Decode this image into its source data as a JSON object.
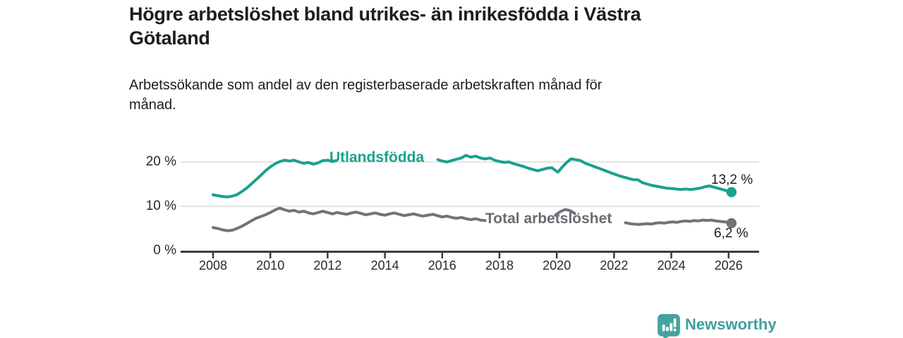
{
  "header": {
    "title_lines": [
      "Högre arbetslöshet bland utrikes- än inrikesfödda i Västra",
      "Götaland"
    ],
    "subtitle_lines": [
      "Arbetssökande som andel av den registerbaserade arbetskraften månad för",
      "månad."
    ]
  },
  "chart_data": {
    "type": "line",
    "title": "Högre arbetslöshet bland utrikes- än inrikesfödda i Västra Götaland",
    "subtitle": "Arbetssökande som andel av den registerbaserade arbetskraften månad för månad.",
    "grid": "horizontal",
    "x_axis": {
      "ticks": [
        2008,
        2010,
        2012,
        2014,
        2016,
        2018,
        2020,
        2022,
        2024,
        2026
      ],
      "range": [
        2006.9,
        2027.1
      ]
    },
    "y_axis": {
      "unit": "%",
      "range": [
        0,
        22
      ],
      "ticks": [
        {
          "value": 0,
          "label": "0 %"
        },
        {
          "value": 10,
          "label": "10 %"
        },
        {
          "value": 20,
          "label": "20 %"
        }
      ]
    },
    "series": [
      {
        "name": "Utlandsfödda",
        "inline_label": "Utlandsfödda",
        "color": "#1aa18f",
        "end_label": "13,2 %",
        "end_value": 13.2,
        "segments": [
          [
            [
              2008.0,
              12.6
            ],
            [
              2008.17,
              12.4
            ],
            [
              2008.33,
              12.2
            ],
            [
              2008.5,
              12.1
            ],
            [
              2008.67,
              12.3
            ],
            [
              2008.83,
              12.6
            ],
            [
              2009.0,
              13.3
            ],
            [
              2009.17,
              14.1
            ],
            [
              2009.33,
              15.0
            ],
            [
              2009.5,
              16.0
            ],
            [
              2009.67,
              17.0
            ],
            [
              2009.83,
              18.0
            ],
            [
              2010.0,
              18.9
            ],
            [
              2010.17,
              19.6
            ],
            [
              2010.33,
              20.1
            ],
            [
              2010.5,
              20.4
            ],
            [
              2010.67,
              20.2
            ],
            [
              2010.83,
              20.4
            ],
            [
              2011.0,
              20.0
            ],
            [
              2011.17,
              19.7
            ],
            [
              2011.33,
              19.9
            ],
            [
              2011.5,
              19.5
            ],
            [
              2011.67,
              19.8
            ],
            [
              2011.83,
              20.3
            ],
            [
              2012.0,
              20.4
            ],
            [
              2012.17,
              20.1
            ],
            [
              2012.3,
              20.3
            ]
          ],
          [
            [
              2015.85,
              20.5
            ],
            [
              2016.0,
              20.2
            ],
            [
              2016.17,
              20.0
            ],
            [
              2016.33,
              20.3
            ],
            [
              2016.5,
              20.6
            ],
            [
              2016.67,
              20.9
            ],
            [
              2016.83,
              21.5
            ],
            [
              2017.0,
              21.1
            ],
            [
              2017.17,
              21.3
            ],
            [
              2017.33,
              20.9
            ],
            [
              2017.5,
              20.7
            ],
            [
              2017.67,
              20.9
            ],
            [
              2017.83,
              20.4
            ],
            [
              2018.0,
              20.1
            ],
            [
              2018.17,
              19.9
            ],
            [
              2018.33,
              20.0
            ],
            [
              2018.5,
              19.6
            ],
            [
              2018.67,
              19.3
            ],
            [
              2018.83,
              19.0
            ],
            [
              2019.0,
              18.6
            ],
            [
              2019.17,
              18.3
            ],
            [
              2019.33,
              18.0
            ],
            [
              2019.5,
              18.3
            ],
            [
              2019.67,
              18.6
            ],
            [
              2019.83,
              18.7
            ],
            [
              2019.95,
              18.1
            ],
            [
              2020.04,
              17.7
            ],
            [
              2020.2,
              18.9
            ],
            [
              2020.35,
              19.9
            ],
            [
              2020.5,
              20.7
            ],
            [
              2020.67,
              20.5
            ],
            [
              2020.83,
              20.3
            ],
            [
              2021.0,
              19.7
            ],
            [
              2021.17,
              19.3
            ],
            [
              2021.33,
              18.9
            ],
            [
              2021.5,
              18.5
            ],
            [
              2021.67,
              18.1
            ],
            [
              2021.83,
              17.7
            ],
            [
              2022.0,
              17.3
            ],
            [
              2022.17,
              16.9
            ],
            [
              2022.33,
              16.6
            ],
            [
              2022.5,
              16.3
            ],
            [
              2022.67,
              16.0
            ],
            [
              2022.83,
              16.0
            ],
            [
              2023.0,
              15.3
            ],
            [
              2023.17,
              15.0
            ],
            [
              2023.33,
              14.7
            ],
            [
              2023.5,
              14.5
            ],
            [
              2023.67,
              14.3
            ],
            [
              2023.83,
              14.1
            ],
            [
              2024.0,
              14.0
            ],
            [
              2024.17,
              13.9
            ],
            [
              2024.33,
              13.8
            ],
            [
              2024.5,
              13.9
            ],
            [
              2024.67,
              13.8
            ],
            [
              2024.83,
              13.9
            ],
            [
              2025.0,
              14.1
            ],
            [
              2025.17,
              14.4
            ],
            [
              2025.33,
              14.6
            ],
            [
              2025.5,
              14.3
            ],
            [
              2025.67,
              14.0
            ],
            [
              2025.83,
              13.7
            ],
            [
              2026.1,
              13.2
            ]
          ]
        ]
      },
      {
        "name": "Total arbetslöshet",
        "inline_label": "Total arbetslöshet",
        "color": "#73727a",
        "end_label": "6,2 %",
        "end_value": 6.2,
        "segments": [
          [
            [
              2008.0,
              5.2
            ],
            [
              2008.17,
              5.0
            ],
            [
              2008.33,
              4.7
            ],
            [
              2008.5,
              4.5
            ],
            [
              2008.67,
              4.6
            ],
            [
              2008.83,
              5.0
            ],
            [
              2009.0,
              5.5
            ],
            [
              2009.17,
              6.1
            ],
            [
              2009.33,
              6.7
            ],
            [
              2009.5,
              7.3
            ],
            [
              2009.67,
              7.7
            ],
            [
              2009.83,
              8.1
            ],
            [
              2010.0,
              8.6
            ],
            [
              2010.17,
              9.2
            ],
            [
              2010.33,
              9.6
            ],
            [
              2010.5,
              9.2
            ],
            [
              2010.67,
              8.9
            ],
            [
              2010.83,
              9.1
            ],
            [
              2011.0,
              8.7
            ],
            [
              2011.17,
              8.9
            ],
            [
              2011.33,
              8.5
            ],
            [
              2011.5,
              8.3
            ],
            [
              2011.67,
              8.6
            ],
            [
              2011.83,
              8.9
            ],
            [
              2012.0,
              8.6
            ],
            [
              2012.17,
              8.3
            ],
            [
              2012.33,
              8.6
            ],
            [
              2012.5,
              8.4
            ],
            [
              2012.67,
              8.2
            ],
            [
              2012.83,
              8.5
            ],
            [
              2013.0,
              8.7
            ],
            [
              2013.17,
              8.4
            ],
            [
              2013.33,
              8.1
            ],
            [
              2013.5,
              8.3
            ],
            [
              2013.67,
              8.5
            ],
            [
              2013.83,
              8.2
            ],
            [
              2014.0,
              8.0
            ],
            [
              2014.17,
              8.3
            ],
            [
              2014.33,
              8.5
            ],
            [
              2014.5,
              8.2
            ],
            [
              2014.67,
              7.9
            ],
            [
              2014.83,
              8.1
            ],
            [
              2015.0,
              8.3
            ],
            [
              2015.17,
              8.0
            ],
            [
              2015.33,
              7.8
            ],
            [
              2015.5,
              8.0
            ],
            [
              2015.67,
              8.2
            ],
            [
              2015.83,
              7.9
            ],
            [
              2016.0,
              7.6
            ],
            [
              2016.17,
              7.8
            ],
            [
              2016.33,
              7.5
            ],
            [
              2016.5,
              7.3
            ],
            [
              2016.67,
              7.5
            ],
            [
              2016.83,
              7.2
            ],
            [
              2017.0,
              7.0
            ],
            [
              2017.17,
              7.2
            ],
            [
              2017.33,
              6.9
            ],
            [
              2017.5,
              6.8
            ]
          ],
          [
            [
              2019.95,
              8.0
            ],
            [
              2020.12,
              8.8
            ],
            [
              2020.3,
              9.3
            ],
            [
              2020.48,
              9.0
            ],
            [
              2020.62,
              8.4
            ]
          ],
          [
            [
              2022.4,
              6.3
            ],
            [
              2022.55,
              6.1
            ],
            [
              2022.7,
              6.0
            ],
            [
              2022.85,
              5.9
            ],
            [
              2023.0,
              6.0
            ],
            [
              2023.15,
              6.1
            ],
            [
              2023.3,
              6.0
            ],
            [
              2023.45,
              6.2
            ],
            [
              2023.6,
              6.3
            ],
            [
              2023.75,
              6.2
            ],
            [
              2023.9,
              6.4
            ],
            [
              2024.05,
              6.5
            ],
            [
              2024.2,
              6.4
            ],
            [
              2024.35,
              6.6
            ],
            [
              2024.5,
              6.7
            ],
            [
              2024.65,
              6.6
            ],
            [
              2024.8,
              6.8
            ],
            [
              2024.95,
              6.7
            ],
            [
              2025.1,
              6.9
            ],
            [
              2025.25,
              6.8
            ],
            [
              2025.4,
              6.9
            ],
            [
              2025.55,
              6.7
            ],
            [
              2025.7,
              6.6
            ],
            [
              2025.85,
              6.5
            ],
            [
              2026.0,
              6.4
            ],
            [
              2026.1,
              6.2
            ]
          ]
        ]
      }
    ]
  },
  "footer": {
    "brand": "Newsworthy",
    "logo_icon": "bar-chart-speech-bubble-icon"
  },
  "colors": {
    "accent_teal": "#1aa18f",
    "series_gray": "#73727a",
    "axis": "#3d3c3e",
    "grid": "#dbdbdb",
    "text": "#1d1d1f",
    "brand_teal": "#3fa19b"
  }
}
